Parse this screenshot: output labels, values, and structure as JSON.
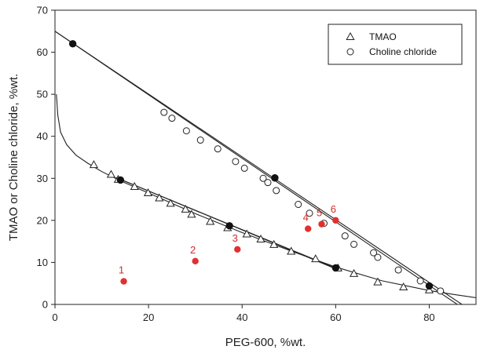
{
  "chart_data": {
    "type": "scatter",
    "xlabel": "PEG-600, %wt.",
    "ylabel": "TMAO or Choline chloride, %wt.",
    "xlim": [
      0,
      90
    ],
    "ylim": [
      0,
      70
    ],
    "xticks": [
      0,
      20,
      40,
      60,
      80
    ],
    "yticks": [
      0,
      10,
      20,
      30,
      40,
      50,
      60,
      70
    ],
    "grid": false,
    "legend_position": "top-right",
    "legend": [
      {
        "name": "TMAO",
        "marker": "open-triangle"
      },
      {
        "name": "Choline chloride",
        "marker": "open-circle"
      }
    ],
    "series": [
      {
        "name": "TMAO",
        "marker": "open-triangle",
        "points": [
          [
            8.3,
            33.2
          ],
          [
            12.0,
            30.9
          ],
          [
            13.5,
            29.7
          ],
          [
            17.0,
            28.0
          ],
          [
            19.9,
            26.5
          ],
          [
            22.3,
            25.3
          ],
          [
            24.7,
            24.0
          ],
          [
            27.9,
            22.6
          ],
          [
            29.2,
            21.4
          ],
          [
            33.2,
            19.7
          ],
          [
            36.9,
            18.2
          ],
          [
            41.0,
            16.7
          ],
          [
            44.0,
            15.5
          ],
          [
            46.8,
            14.2
          ],
          [
            50.5,
            12.6
          ],
          [
            55.7,
            10.8
          ],
          [
            60.5,
            8.6
          ],
          [
            63.9,
            7.3
          ],
          [
            69.0,
            5.3
          ],
          [
            74.5,
            4.1
          ],
          [
            80.0,
            3.4
          ]
        ]
      },
      {
        "name": "Choline chloride",
        "marker": "open-circle",
        "points": [
          [
            23.3,
            45.7
          ],
          [
            25.0,
            44.3
          ],
          [
            28.1,
            41.3
          ],
          [
            31.1,
            39.1
          ],
          [
            34.8,
            37.0
          ],
          [
            38.6,
            34.0
          ],
          [
            40.5,
            32.4
          ],
          [
            44.5,
            30.0
          ],
          [
            45.5,
            29.0
          ],
          [
            47.3,
            27.1
          ],
          [
            52.0,
            23.8
          ],
          [
            54.4,
            21.7
          ],
          [
            57.5,
            19.3
          ],
          [
            62.0,
            16.3
          ],
          [
            63.9,
            14.3
          ],
          [
            68.1,
            12.3
          ],
          [
            69.0,
            11.2
          ],
          [
            73.4,
            8.2
          ],
          [
            78.1,
            5.6
          ],
          [
            82.4,
            3.2
          ]
        ]
      },
      {
        "name": "tie-line nodes",
        "marker": "filled-circle",
        "points": [
          [
            3.8,
            62.0
          ],
          [
            14.0,
            29.6
          ],
          [
            37.3,
            18.7
          ],
          [
            47.0,
            30.1
          ],
          [
            60.0,
            8.7
          ],
          [
            80.0,
            4.4
          ]
        ]
      },
      {
        "name": "composition points",
        "marker": "red-dot",
        "points": [
          [
            14.7,
            5.5
          ],
          [
            30.0,
            10.3
          ],
          [
            39.0,
            13.1
          ],
          [
            54.1,
            18.0
          ],
          [
            57.0,
            19.1
          ],
          [
            60.0,
            20.0
          ]
        ],
        "labels": [
          "1",
          "2",
          "3",
          "4",
          "5",
          "6"
        ]
      }
    ],
    "lines": [
      {
        "name": "tie-line-choline",
        "points": [
          [
            0,
            65.0
          ],
          [
            87.0,
            0
          ]
        ]
      },
      {
        "name": "tie-line-tmao",
        "points": [
          [
            0,
            65.0
          ],
          [
            86.0,
            0
          ]
        ]
      },
      {
        "name": "binodal-tmao-fit",
        "points": [
          [
            13.0,
            30.2
          ],
          [
            60.5,
            8.4
          ]
        ]
      },
      {
        "name": "tie-line-short",
        "points": [
          [
            13.5,
            30.0
          ],
          [
            61.0,
            8.0
          ]
        ]
      }
    ],
    "binodal_curve": [
      [
        0.3,
        50.0
      ],
      [
        0.6,
        45.0
      ],
      [
        1.2,
        41.0
      ],
      [
        2.5,
        38.0
      ],
      [
        4.5,
        35.5
      ],
      [
        7.0,
        33.6
      ],
      [
        10.0,
        31.6
      ],
      [
        14.0,
        29.4
      ],
      [
        20.0,
        26.5
      ],
      [
        30.0,
        21.6
      ],
      [
        40.0,
        17.1
      ],
      [
        50.0,
        12.9
      ],
      [
        60.0,
        8.9
      ],
      [
        70.0,
        5.6
      ],
      [
        80.0,
        3.3
      ],
      [
        85.0,
        2.4
      ],
      [
        90.0,
        1.6
      ]
    ]
  }
}
